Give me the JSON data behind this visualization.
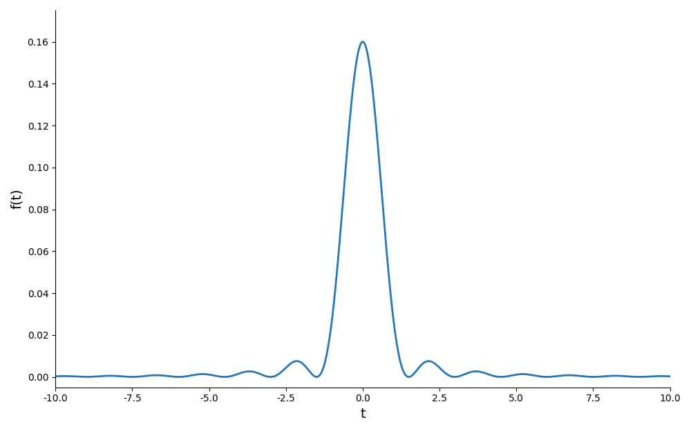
{
  "title": "",
  "xlabel": "t",
  "ylabel": "f(t)",
  "xlim": [
    -10.0,
    10.0
  ],
  "ylim": [
    -0.005,
    0.175
  ],
  "xticks": [
    -10.0,
    -7.5,
    -5.0,
    -2.5,
    0.0,
    2.5,
    5.0,
    7.5,
    10.0
  ],
  "yticks": [
    0.0,
    0.02,
    0.04,
    0.06,
    0.08,
    0.1,
    0.12,
    0.14,
    0.16
  ],
  "line_color": "#2878b5",
  "line_width": 2.0,
  "background_color": "#ffffff",
  "figsize": [
    10.0,
    6.25
  ],
  "dpi": 100,
  "scale": 0.16,
  "bandwidth": 0.32
}
